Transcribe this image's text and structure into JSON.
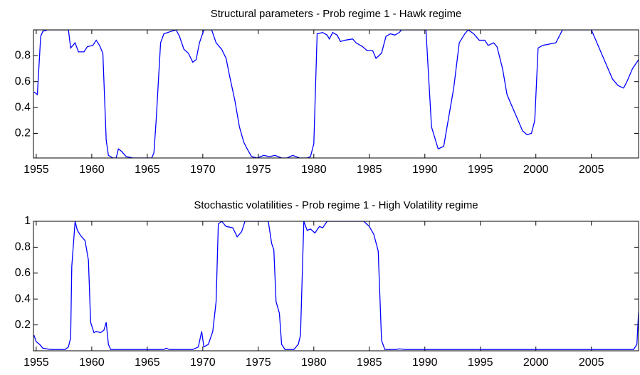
{
  "chart_data": [
    {
      "type": "line",
      "title": "Structural parameters - Prob regime 1 - Hawk regime",
      "color": "#0000ff",
      "xlim": [
        1954.75,
        2009.25
      ],
      "ylim": [
        0.01,
        1
      ],
      "xticks": [
        1955,
        1960,
        1965,
        1970,
        1975,
        1980,
        1985,
        1990,
        1995,
        2000,
        2005
      ],
      "yticks": [
        0.2,
        0.4,
        0.6,
        0.8
      ],
      "x": [
        1954.8,
        1955.1,
        1955.4,
        1955.6,
        1956.0,
        1957.9,
        1958.1,
        1958.5,
        1958.8,
        1959.3,
        1959.6,
        1960.1,
        1960.4,
        1960.7,
        1961.0,
        1961.3,
        1961.5,
        1961.9,
        1962.2,
        1962.4,
        1962.7,
        1963.1,
        1963.7,
        1964.6,
        1965.4,
        1965.6,
        1965.8,
        1966.2,
        1966.5,
        1967.2,
        1967.6,
        1967.9,
        1968.3,
        1968.7,
        1969.1,
        1969.4,
        1969.7,
        1970.1,
        1970.8,
        1971.2,
        1971.7,
        1972.1,
        1972.4,
        1972.9,
        1973.3,
        1973.7,
        1974.0,
        1974.4,
        1974.9,
        1975.5,
        1976.0,
        1976.5,
        1977.1,
        1977.6,
        1978.1,
        1978.7,
        1979.4,
        1979.7,
        1980.0,
        1980.3,
        1980.8,
        1981.2,
        1981.4,
        1981.7,
        1982.1,
        1982.4,
        1982.8,
        1983.5,
        1983.8,
        1984.4,
        1984.8,
        1985.3,
        1985.6,
        1986.1,
        1986.5,
        1986.9,
        1987.3,
        1987.7,
        1987.9,
        1990.1,
        1990.6,
        1991.2,
        1991.7,
        1992.1,
        1992.6,
        1993.1,
        1993.6,
        1993.9,
        1994.4,
        1994.9,
        1995.4,
        1995.7,
        1996.2,
        1996.5,
        1997.0,
        1997.4,
        1997.9,
        1998.4,
        1998.8,
        1999.2,
        1999.6,
        1999.9,
        2000.2,
        2000.6,
        2001.2,
        2001.8,
        2002.4,
        2005.0,
        2005.5,
        2006.0,
        2006.4,
        2006.9,
        2007.4,
        2007.9,
        2008.2,
        2008.7,
        2009.25
      ],
      "values": [
        0.52,
        0.5,
        0.95,
        0.99,
        1,
        1,
        0.86,
        0.9,
        0.83,
        0.83,
        0.87,
        0.88,
        0.92,
        0.88,
        0.82,
        0.15,
        0.03,
        0.01,
        0.01,
        0.08,
        0.06,
        0.02,
        0.01,
        0.01,
        0.01,
        0.05,
        0.3,
        0.9,
        0.97,
        0.99,
        1,
        0.95,
        0.85,
        0.82,
        0.75,
        0.77,
        0.9,
        1,
        1,
        0.9,
        0.85,
        0.78,
        0.65,
        0.45,
        0.25,
        0.13,
        0.08,
        0.02,
        0.01,
        0.03,
        0.02,
        0.03,
        0.01,
        0.01,
        0.03,
        0.01,
        0.01,
        0.02,
        0.12,
        0.97,
        0.98,
        0.96,
        0.93,
        0.98,
        0.96,
        0.91,
        0.92,
        0.93,
        0.9,
        0.87,
        0.84,
        0.84,
        0.78,
        0.82,
        0.95,
        0.97,
        0.96,
        0.98,
        1,
        1,
        0.25,
        0.08,
        0.1,
        0.3,
        0.55,
        0.9,
        0.97,
        1,
        0.97,
        0.92,
        0.92,
        0.88,
        0.9,
        0.87,
        0.7,
        0.5,
        0.4,
        0.3,
        0.22,
        0.19,
        0.2,
        0.3,
        0.86,
        0.88,
        0.89,
        0.9,
        1,
        1,
        0.9,
        0.8,
        0.72,
        0.62,
        0.57,
        0.55,
        0.6,
        0.7,
        0.77
      ]
    },
    {
      "type": "line",
      "title": "Stochastic volatilities - Prob regime 1 - High Volatility regime",
      "color": "#0000ff",
      "xlim": [
        1954.75,
        2009.25
      ],
      "ylim": [
        0,
        1
      ],
      "xticks": [
        1955,
        1960,
        1965,
        1970,
        1975,
        1980,
        1985,
        1990,
        1995,
        2000,
        2005
      ],
      "yticks": [
        0.2,
        0.4,
        0.6,
        0.8,
        1
      ],
      "x": [
        1954.8,
        1955.0,
        1955.3,
        1955.6,
        1956.3,
        1957.6,
        1957.9,
        1958.1,
        1958.2,
        1958.5,
        1958.7,
        1959.0,
        1959.4,
        1959.6,
        1959.7,
        1959.9,
        1960.2,
        1960.4,
        1960.8,
        1961.1,
        1961.3,
        1961.5,
        1961.7,
        1962.7,
        1964.0,
        1966.5,
        1966.7,
        1967.0,
        1969.1,
        1969.6,
        1969.9,
        1970.1,
        1970.5,
        1970.9,
        1971.2,
        1971.4,
        1971.7,
        1972.1,
        1972.7,
        1973.1,
        1973.5,
        1973.8,
        1975.9,
        1976.2,
        1976.4,
        1976.6,
        1976.9,
        1977.1,
        1977.4,
        1978.2,
        1978.6,
        1978.8,
        1979.1,
        1979.4,
        1979.7,
        1980.1,
        1980.5,
        1980.8,
        1981.2,
        1984.5,
        1985.0,
        1985.4,
        1985.8,
        1986.1,
        1986.4,
        1987.4,
        1987.7,
        1988.3,
        2008.8,
        2009.1,
        2009.25
      ],
      "values": [
        0.12,
        0.07,
        0.05,
        0.02,
        0.01,
        0.01,
        0.03,
        0.1,
        0.65,
        1,
        0.93,
        0.89,
        0.85,
        0.75,
        0.7,
        0.22,
        0.14,
        0.15,
        0.14,
        0.16,
        0.22,
        0.05,
        0.01,
        0.01,
        0.01,
        0.01,
        0.02,
        0.01,
        0.01,
        0.03,
        0.15,
        0.03,
        0.05,
        0.15,
        0.38,
        0.98,
        1,
        0.96,
        0.95,
        0.88,
        0.92,
        1,
        1,
        0.83,
        0.78,
        0.38,
        0.29,
        0.05,
        0.01,
        0.01,
        0.05,
        0.12,
        1,
        0.93,
        0.94,
        0.91,
        0.96,
        0.95,
        1,
        1,
        0.96,
        0.9,
        0.77,
        0.08,
        0.01,
        0.01,
        0.015,
        0.01,
        0.01,
        0.05,
        0.3
      ]
    }
  ]
}
